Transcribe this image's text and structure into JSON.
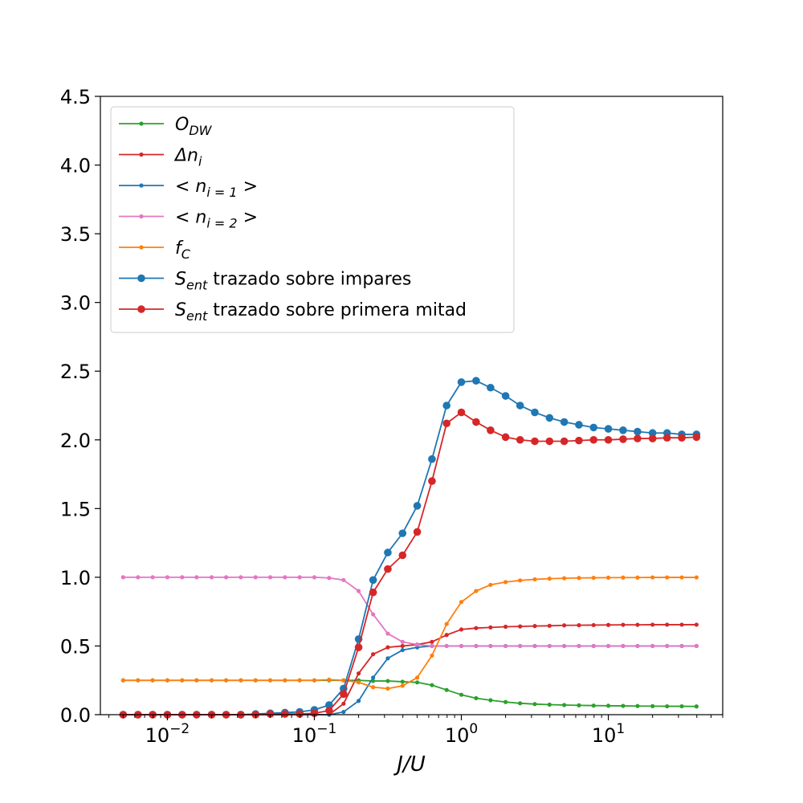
{
  "chart_data": {
    "type": "line",
    "title": "",
    "xlabel": "J/U",
    "ylabel": "",
    "xscale": "log",
    "xlim": [
      0.0035,
      60
    ],
    "ylim": [
      0,
      4.5
    ],
    "grid": false,
    "legend_position": "upper-left",
    "y_ticks": [
      "0.0",
      "0.5",
      "1.0",
      "1.5",
      "2.0",
      "2.5",
      "3.0",
      "3.5",
      "4.0",
      "4.5"
    ],
    "x_ticks": [
      {
        "base": "10",
        "exp": "−2",
        "value": 0.01
      },
      {
        "base": "10",
        "exp": "−1",
        "value": 0.1
      },
      {
        "base": "10",
        "exp": "0",
        "value": 1
      },
      {
        "base": "10",
        "exp": "1",
        "value": 10
      }
    ],
    "x": [
      0.005,
      0.00631,
      0.00794,
      0.01,
      0.0126,
      0.0158,
      0.02,
      0.0251,
      0.0316,
      0.0398,
      0.0501,
      0.0631,
      0.0794,
      0.1,
      0.126,
      0.158,
      0.2,
      0.251,
      0.316,
      0.398,
      0.501,
      0.631,
      0.794,
      1.0,
      1.26,
      1.58,
      2.0,
      2.51,
      3.16,
      3.98,
      5.01,
      6.31,
      7.94,
      10.0,
      12.6,
      15.8,
      20.0,
      25.1,
      31.6,
      39.8
    ],
    "series": [
      {
        "name": "O_DW",
        "legend_main": "O",
        "legend_sub": "DW",
        "legend_rest": "",
        "color": "#2ca02c",
        "marker": "small",
        "values": [
          0.25,
          0.25,
          0.25,
          0.25,
          0.25,
          0.25,
          0.25,
          0.25,
          0.25,
          0.25,
          0.25,
          0.25,
          0.25,
          0.25,
          0.25,
          0.25,
          0.25,
          0.245,
          0.245,
          0.24,
          0.235,
          0.215,
          0.18,
          0.145,
          0.12,
          0.105,
          0.092,
          0.083,
          0.077,
          0.073,
          0.07,
          0.068,
          0.066,
          0.065,
          0.064,
          0.063,
          0.062,
          0.061,
          0.061,
          0.06
        ]
      },
      {
        "name": "Δn_i",
        "legend_main": "Δn",
        "legend_sub": "i",
        "legend_rest": "",
        "color": "#d62728",
        "marker": "small",
        "values": [
          0.0,
          0.0,
          0.0,
          0.0,
          0.0,
          0.0,
          0.0,
          0.0,
          0.0,
          0.0,
          0.0,
          0.0,
          0.0,
          0.0,
          0.0,
          0.08,
          0.3,
          0.44,
          0.49,
          0.5,
          0.51,
          0.53,
          0.58,
          0.62,
          0.63,
          0.635,
          0.64,
          0.642,
          0.645,
          0.647,
          0.65,
          0.651,
          0.652,
          0.653,
          0.654,
          0.654,
          0.655,
          0.655,
          0.655,
          0.655
        ]
      },
      {
        "name": "<n_{i=1}>",
        "legend_main": "< n",
        "legend_sub": "i = 1",
        "legend_rest": " >",
        "color": "#1f77b4",
        "marker": "small",
        "values": [
          0.0,
          0.0,
          0.0,
          0.0,
          0.0,
          0.0,
          0.0,
          0.0,
          0.0,
          0.0,
          0.0,
          0.0,
          0.0,
          0.0,
          0.0,
          0.02,
          0.1,
          0.27,
          0.41,
          0.47,
          0.49,
          0.5,
          0.5,
          0.5,
          0.5,
          0.5,
          0.5,
          0.5,
          0.5,
          0.5,
          0.5,
          0.5,
          0.5,
          0.5,
          0.5,
          0.5,
          0.5,
          0.5,
          0.5,
          0.5
        ]
      },
      {
        "name": "<n_{i=2}>",
        "legend_main": "< n",
        "legend_sub": "i = 2",
        "legend_rest": " >",
        "color": "#e377c2",
        "marker": "small",
        "values": [
          1.0,
          1.0,
          1.0,
          1.0,
          1.0,
          1.0,
          1.0,
          1.0,
          1.0,
          1.0,
          1.0,
          1.0,
          1.0,
          1.0,
          0.995,
          0.98,
          0.9,
          0.73,
          0.59,
          0.53,
          0.51,
          0.5,
          0.5,
          0.5,
          0.5,
          0.5,
          0.5,
          0.5,
          0.5,
          0.5,
          0.5,
          0.5,
          0.5,
          0.5,
          0.5,
          0.5,
          0.5,
          0.5,
          0.5,
          0.5
        ]
      },
      {
        "name": "f_C",
        "legend_main": "f",
        "legend_sub": "C",
        "legend_rest": "",
        "color": "#ff7f0e",
        "marker": "small",
        "values": [
          0.25,
          0.25,
          0.25,
          0.25,
          0.25,
          0.25,
          0.25,
          0.25,
          0.25,
          0.25,
          0.25,
          0.25,
          0.25,
          0.25,
          0.255,
          0.25,
          0.235,
          0.2,
          0.19,
          0.21,
          0.27,
          0.43,
          0.66,
          0.82,
          0.9,
          0.945,
          0.965,
          0.977,
          0.985,
          0.99,
          0.993,
          0.995,
          0.996,
          0.997,
          0.998,
          0.998,
          0.999,
          0.999,
          0.999,
          0.999
        ]
      },
      {
        "name": "S_ent trazado sobre impares",
        "legend_main": "S",
        "legend_sub": "ent",
        "legend_rest": " trazado sobre impares",
        "color": "#1f77b4",
        "marker": "large",
        "values": [
          0.0,
          0.0,
          0.0,
          0.0,
          0.0,
          0.0,
          0.0,
          0.0,
          0.0,
          0.005,
          0.01,
          0.015,
          0.02,
          0.035,
          0.07,
          0.19,
          0.55,
          0.98,
          1.18,
          1.32,
          1.52,
          1.86,
          2.25,
          2.42,
          2.43,
          2.38,
          2.32,
          2.25,
          2.2,
          2.16,
          2.13,
          2.11,
          2.09,
          2.08,
          2.07,
          2.06,
          2.05,
          2.05,
          2.04,
          2.04
        ]
      },
      {
        "name": "S_ent trazado sobre primera mitad",
        "legend_main": "S",
        "legend_sub": "ent",
        "legend_rest": " trazado sobre primera mitad",
        "color": "#d62728",
        "marker": "large",
        "values": [
          0.0,
          0.0,
          0.0,
          0.0,
          0.0,
          0.0,
          0.0,
          0.0,
          0.0,
          0.0,
          0.005,
          0.005,
          0.005,
          0.01,
          0.03,
          0.15,
          0.49,
          0.89,
          1.06,
          1.16,
          1.33,
          1.7,
          2.12,
          2.2,
          2.13,
          2.07,
          2.02,
          2.0,
          1.99,
          1.99,
          1.99,
          1.995,
          2.0,
          2.0,
          2.005,
          2.01,
          2.01,
          2.015,
          2.015,
          2.02
        ]
      }
    ]
  }
}
